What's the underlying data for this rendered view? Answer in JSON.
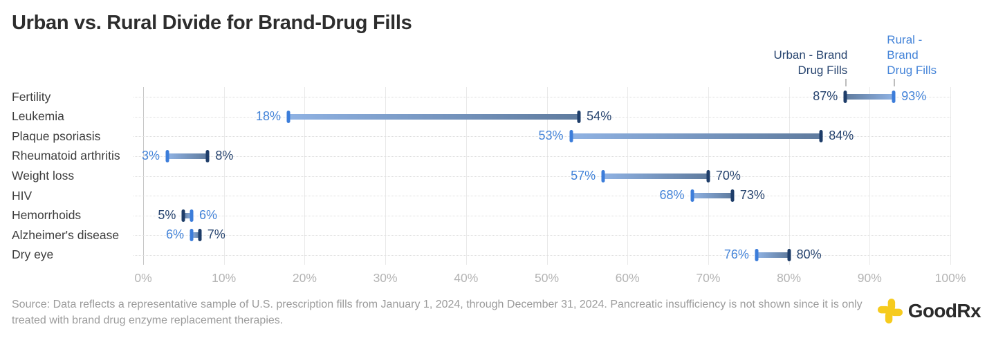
{
  "title": "Urban vs. Rural Divide for Brand-Drug Fills",
  "legend": {
    "urban": {
      "line1": "Urban - Brand",
      "line2": "Drug Fills"
    },
    "rural": {
      "line1": "Rural - Brand",
      "line2": "Drug Fills"
    }
  },
  "chart_data": {
    "type": "bar",
    "variant": "dumbbell-range",
    "categories": [
      "Fertility",
      "Leukemia",
      "Plaque psoriasis",
      "Rheumatoid arthritis",
      "Weight loss",
      "HIV",
      "Hemorrhoids",
      "Alzheimer's disease",
      "Dry eye"
    ],
    "series": [
      {
        "id": "urban",
        "name": "Urban - Brand Drug Fills",
        "values": [
          87,
          54,
          84,
          8,
          70,
          73,
          5,
          7,
          80
        ]
      },
      {
        "id": "rural",
        "name": "Rural - Brand Drug Fills",
        "values": [
          93,
          18,
          53,
          3,
          57,
          68,
          6,
          6,
          76
        ]
      }
    ],
    "value_suffix": "%",
    "axis": {
      "min": 0,
      "max": 100,
      "ticks": [
        0,
        10,
        20,
        30,
        40,
        50,
        60,
        70,
        80,
        90,
        100
      ],
      "tick_suffix": "%"
    },
    "legend_anchor": {
      "urban_pct": 87,
      "rural_pct": 93
    },
    "grid": {
      "vertical": true,
      "horizontal_dotted": true
    },
    "colors": {
      "urban_cap": "#1E3D69",
      "urban_text": "#27446F",
      "rural_cap": "#3C7DDA",
      "rural_text": "#4383D8",
      "body_urban_end": "#5F7B9E",
      "body_rural_end": "#8FB2E3"
    }
  },
  "footer": {
    "source": "Source: Data reflects a representative sample of U.S. prescription fills from January 1, 2024, through December 31, 2024. Pancreatic insufficiency is not shown since it is only treated with brand drug enzyme replacement therapies.",
    "logo_text": "GoodRx"
  }
}
